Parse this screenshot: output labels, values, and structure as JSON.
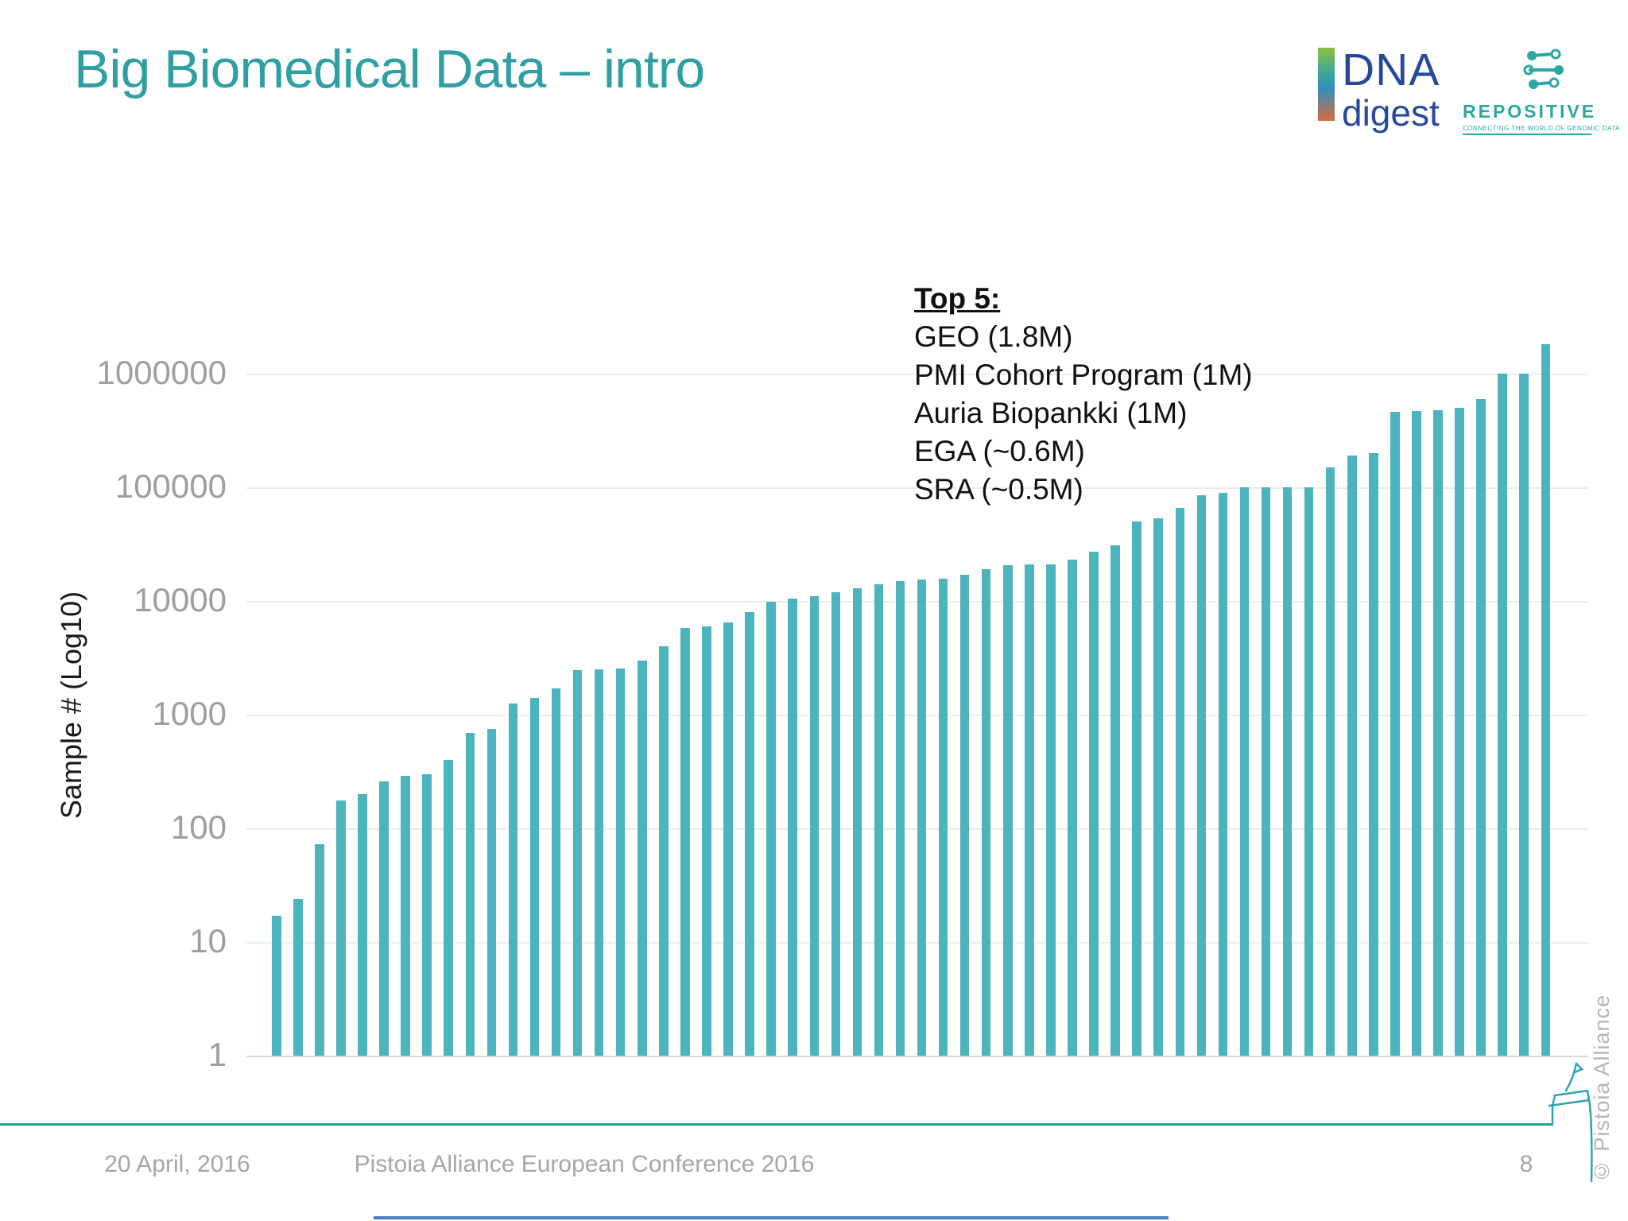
{
  "slide": {
    "title": "Big Biomedical Data – intro",
    "footer": {
      "date": "20 April, 2016",
      "conference": "Pistoia Alliance European Conference 2016",
      "page_number": "8",
      "copyright": "© Pistoia Alliance"
    },
    "logos": {
      "dna_digest": {
        "line1": "DNA",
        "line2": "digest"
      },
      "repositive": {
        "name": "REPOSITIVE",
        "tagline": "CONNECTING THE WORLD OF GENOMIC DATA"
      }
    }
  },
  "colors": {
    "title": "#2f9fa3",
    "bar": "#4bb4bd",
    "axis_text": "#9e9e9e",
    "gridline": "#ececec",
    "footer_line": "#2f9e99",
    "dna_digest_blue": "#28499b",
    "repositive_teal": "#2aa79e",
    "pistoia_sketch": "#2ba3b4",
    "bottom_line_blue": "#4a7ebb"
  },
  "chart_data": {
    "type": "bar",
    "title": "",
    "xlabel": "",
    "ylabel": "Sample # (Log10)",
    "y_scale": "log10",
    "ylim": [
      1,
      1000000
    ],
    "y_tick_labels": [
      "1",
      "10",
      "100",
      "1000",
      "10000",
      "100000",
      "1000000"
    ],
    "x_tick_labels_shown": false,
    "grid": true,
    "legend": false,
    "bar_color": "#4bb4bd",
    "n_bars": 60,
    "values": [
      17,
      24,
      73,
      175,
      200,
      260,
      290,
      300,
      400,
      690,
      750,
      1250,
      1400,
      1700,
      2450,
      2500,
      2550,
      3000,
      4000,
      5800,
      6000,
      6500,
      8000,
      9800,
      10500,
      11000,
      12000,
      13000,
      14000,
      15000,
      15500,
      15600,
      17000,
      19000,
      20500,
      21000,
      21000,
      23000,
      27000,
      31000,
      50000,
      53000,
      66000,
      85000,
      89000,
      100000,
      100000,
      100000,
      100000,
      150000,
      190000,
      200000,
      460000,
      470000,
      480000,
      500000,
      600000,
      1000000,
      1000000,
      1800000
    ],
    "annotation": {
      "title": "Top 5:",
      "items": [
        "GEO (1.8M)",
        "PMI Cohort Program (1M)",
        "Auria Biopankki (1M)",
        "EGA (~0.6M)",
        "SRA (~0.5M)"
      ]
    }
  }
}
